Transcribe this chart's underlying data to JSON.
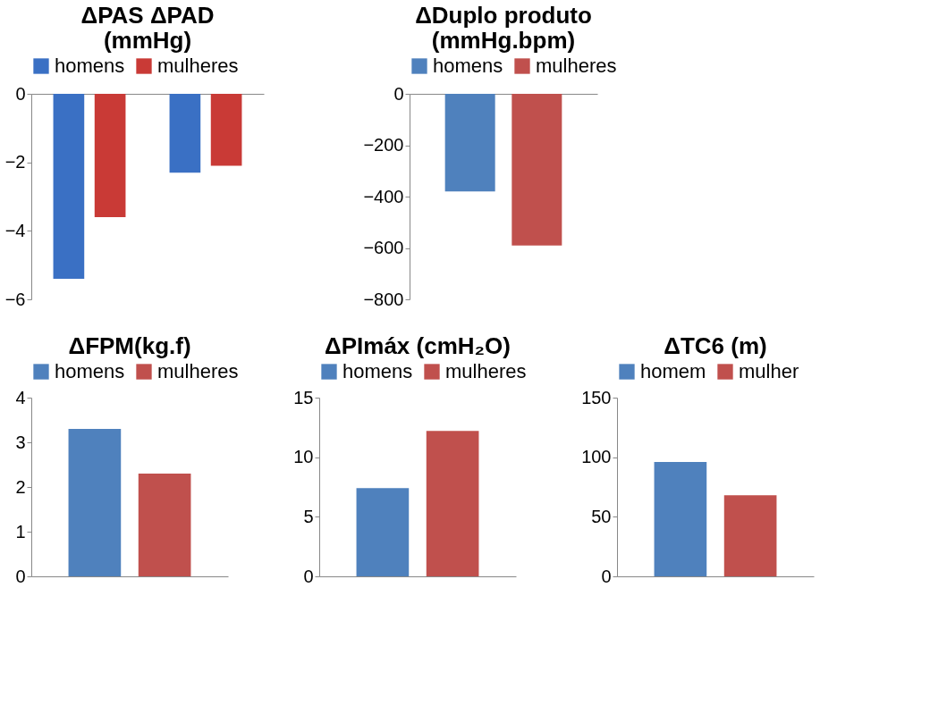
{
  "chart_data": [
    {
      "type": "bar",
      "title": "ΔPAS          ΔPAD\n(mmHg)",
      "categories": [
        null,
        null
      ],
      "series": [
        {
          "name": "homens",
          "color": "#3a70c4",
          "values": [
            -5.4,
            -2.3
          ]
        },
        {
          "name": "mulheres",
          "color": "#c93a36",
          "values": [
            -3.6,
            -2.1
          ]
        }
      ],
      "ylim": [
        -6,
        0
      ],
      "yticks": [
        0,
        -2,
        -4,
        -6
      ],
      "legend": "top",
      "grid": false
    },
    {
      "type": "bar",
      "title": "ΔDuplo produto\n(mmHg.bpm)",
      "categories": [
        null
      ],
      "series": [
        {
          "name": "homens",
          "color": "#4f81bd",
          "values": [
            -380
          ]
        },
        {
          "name": "mulheres",
          "color": "#c0504d",
          "values": [
            -590
          ]
        }
      ],
      "ylim": [
        -800,
        0
      ],
      "yticks": [
        0,
        -200,
        -400,
        -600,
        -800
      ],
      "legend": "top",
      "grid": false
    },
    {
      "type": "bar",
      "title": "ΔFPM(kg.f)",
      "categories": [
        null
      ],
      "series": [
        {
          "name": "homens",
          "color": "#4f81bd",
          "values": [
            3.3
          ]
        },
        {
          "name": "mulheres",
          "color": "#c0504d",
          "values": [
            2.3
          ]
        }
      ],
      "ylim": [
        0,
        4
      ],
      "yticks": [
        0,
        1,
        2,
        3,
        4
      ],
      "legend": "top",
      "grid": false
    },
    {
      "type": "bar",
      "title": "ΔPImáx (cmH₂O)",
      "categories": [
        null
      ],
      "series": [
        {
          "name": "homens",
          "color": "#4f81bd",
          "values": [
            7.4
          ]
        },
        {
          "name": "mulheres",
          "color": "#c0504d",
          "values": [
            12.2
          ]
        }
      ],
      "ylim": [
        0,
        15
      ],
      "yticks": [
        0,
        5,
        10,
        15
      ],
      "legend": "top",
      "grid": false
    },
    {
      "type": "bar",
      "title": "ΔTC6 (m)",
      "categories": [
        null
      ],
      "series": [
        {
          "name": "homem",
          "color": "#4f81bd",
          "values": [
            96
          ]
        },
        {
          "name": "mulher",
          "color": "#c0504d",
          "values": [
            68
          ]
        }
      ],
      "ylim": [
        0,
        150
      ],
      "yticks": [
        0,
        50,
        100,
        150
      ],
      "legend": "top",
      "grid": false
    }
  ]
}
